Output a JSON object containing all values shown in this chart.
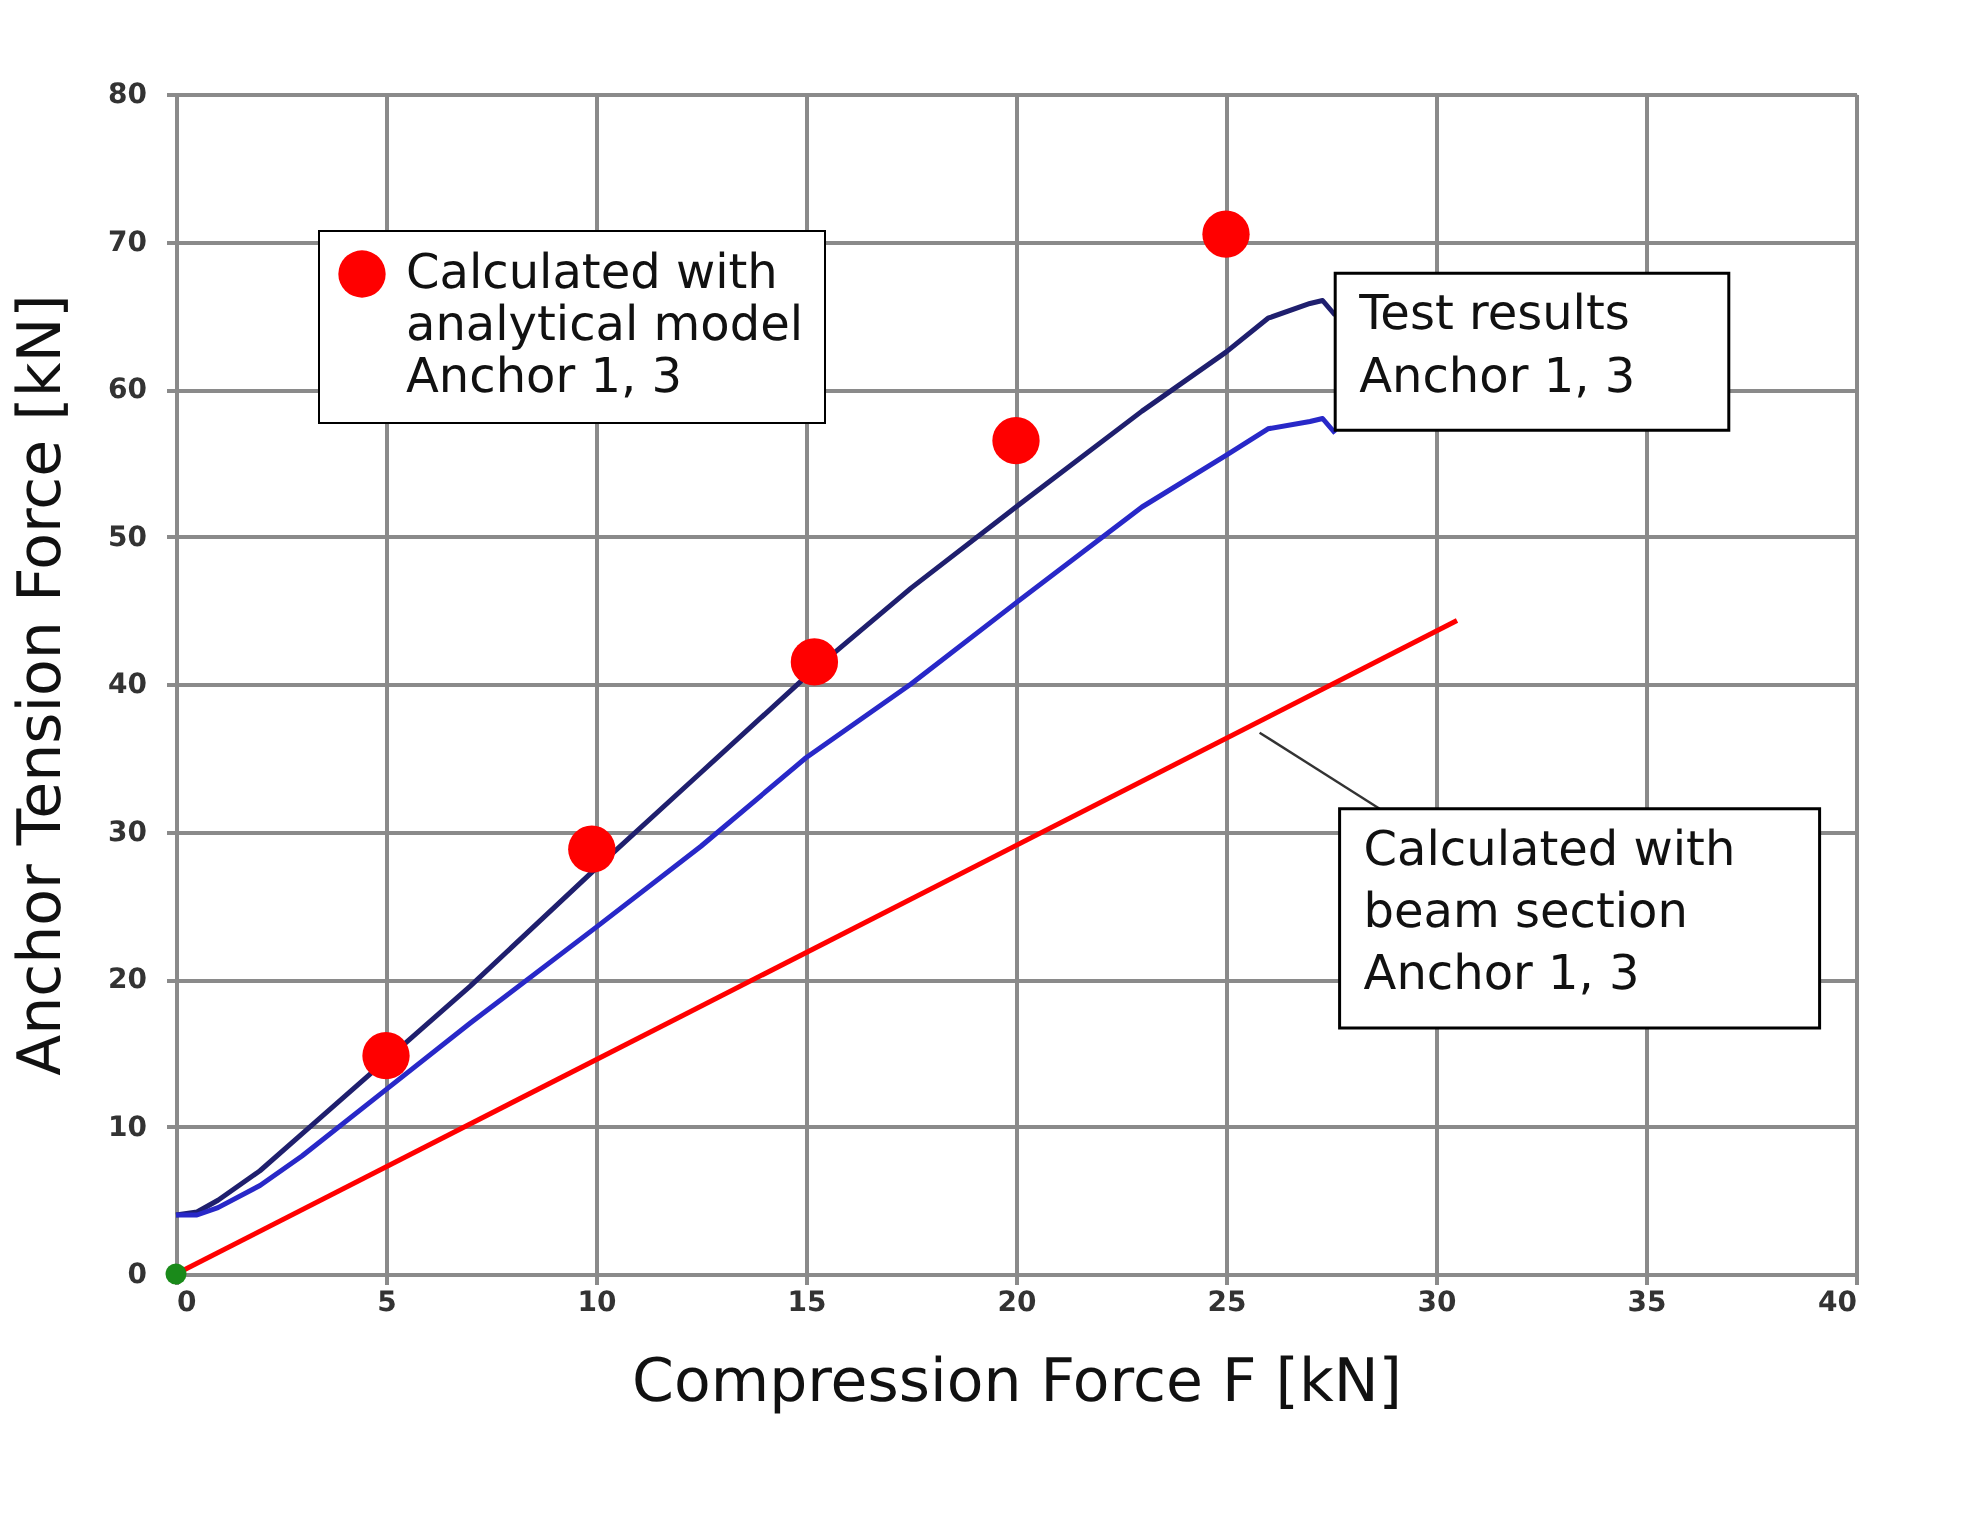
{
  "chart_data": {
    "type": "line",
    "xlabel": "Compression Force F [kN]",
    "ylabel": "Anchor Tension Force [kN]",
    "xlim": [
      0,
      40
    ],
    "ylim": [
      0,
      80
    ],
    "xticks": [
      0,
      5,
      10,
      15,
      20,
      25,
      30,
      35,
      40
    ],
    "yticks": [
      0,
      10,
      20,
      30,
      40,
      50,
      60,
      70,
      80
    ],
    "grid": true,
    "legend": "top left",
    "series": [
      {
        "color": "#1f1f6e",
        "marker": "none",
        "x": [
          0,
          0.5,
          1,
          2,
          3,
          7,
          10,
          12.5,
          15,
          17.5,
          20,
          23,
          25,
          26,
          27,
          27.3,
          27.6
        ],
        "values": [
          4,
          4.2,
          5,
          7,
          9.5,
          19.5,
          27.5,
          34,
          40.5,
          46.5,
          52,
          58.5,
          62.5,
          64.8,
          65.8,
          66,
          65
        ]
      },
      {
        "color": "#2828c8",
        "marker": "none",
        "x": [
          0,
          0.5,
          1,
          2,
          3,
          5,
          7,
          10,
          12.5,
          15,
          17.5,
          20,
          23,
          25,
          26,
          27,
          27.3,
          27.6
        ],
        "values": [
          4,
          4,
          4.5,
          6,
          8,
          12.5,
          17,
          23.5,
          29,
          35,
          40,
          45.5,
          52,
          55.5,
          57.3,
          57.8,
          58,
          57
        ]
      },
      {
        "color": "#ff0000",
        "marker": "none",
        "x": [
          0,
          30.5
        ],
        "values": [
          0,
          44.3
        ]
      },
      {
        "type": "scatter",
        "name": "Calculated with\nanalytical model\nAnchor 1, 3",
        "color": "#ff0000",
        "marker": "circle",
        "x": [
          5,
          9.9,
          15.2,
          20,
          25
        ],
        "values": [
          14.8,
          28.8,
          41.5,
          56.5,
          70.5
        ]
      },
      {
        "type": "scatter",
        "color": "#1a8a1a",
        "marker": "circle",
        "x": [
          0
        ],
        "values": [
          0
        ]
      }
    ],
    "annotations": [
      "Test results\nAnchor 1, 3",
      {
        "text": "Calculated with\nbeam section\nAnchor 1, 3",
        "x": 25.8,
        "y": 36.7
      }
    ]
  }
}
